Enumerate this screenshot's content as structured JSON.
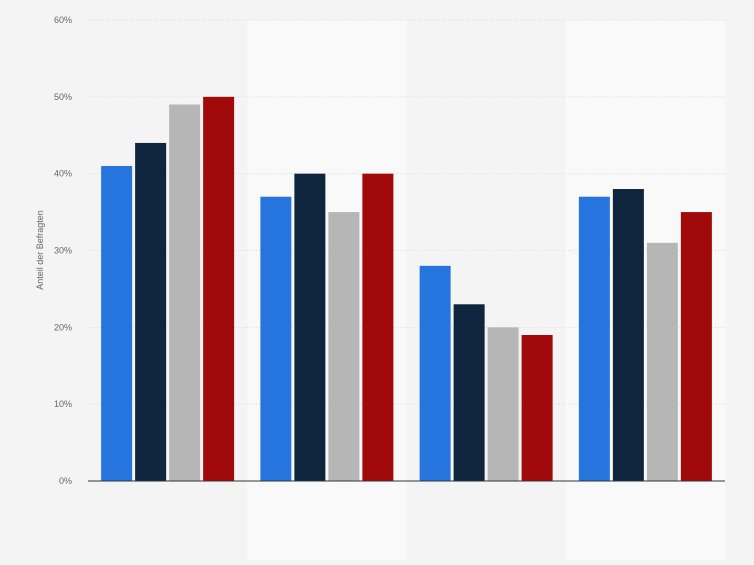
{
  "chart_data": {
    "type": "bar",
    "title": "",
    "xlabel": "",
    "ylabel": "Anteil der Befragten",
    "ylim": [
      0,
      60
    ],
    "yticks": [
      0,
      10,
      20,
      30,
      40,
      50,
      60
    ],
    "ytick_labels": [
      "0%",
      "10%",
      "20%",
      "30%",
      "40%",
      "50%",
      "60%"
    ],
    "grid": true,
    "legend": "none",
    "categories": [
      "",
      "",
      "",
      ""
    ],
    "series": [
      {
        "color": "#2675de",
        "values": [
          41,
          37,
          28,
          37
        ]
      },
      {
        "color": "#0f253d",
        "values": [
          44,
          40,
          23,
          38
        ]
      },
      {
        "color": "#b6b6b6",
        "values": [
          49,
          35,
          20,
          31
        ]
      },
      {
        "color": "#a10a0a",
        "values": [
          50,
          40,
          19,
          35
        ]
      }
    ]
  }
}
